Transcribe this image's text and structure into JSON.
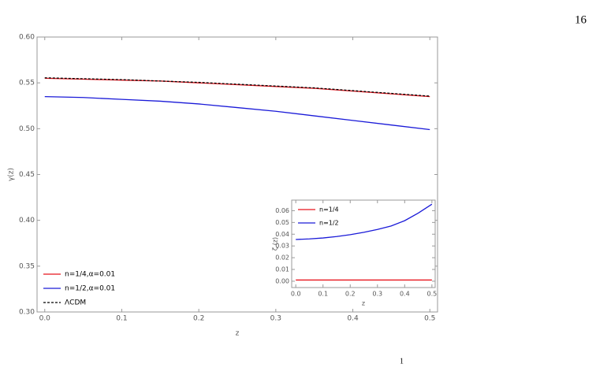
{
  "page_number": "16",
  "footer_fragment": "1",
  "chart_data": [
    {
      "type": "line",
      "xlabel": "z",
      "ylabel": "γ(z)",
      "xlim": [
        -0.01,
        0.51
      ],
      "ylim": [
        0.3,
        0.6
      ],
      "xticks": [
        {
          "value": 0,
          "label": "0.0"
        },
        0.1,
        0.2,
        0.3,
        0.4,
        0.5
      ],
      "yticks": [
        {
          "value": 0.3,
          "label": "0.30"
        },
        0.35,
        {
          "value": 0.4,
          "label": "0.40"
        },
        0.45,
        {
          "value": 0.5,
          "label": "0.50"
        },
        0.55,
        {
          "value": 0.6,
          "label": "0.60"
        }
      ],
      "legend": "lower left",
      "x": [
        0,
        0.05,
        0.1,
        0.15,
        0.2,
        0.25,
        0.3,
        0.35,
        0.4,
        0.45,
        0.5
      ],
      "series": [
        {
          "name": "n=1/4,α=0.01",
          "color": "#e8141c",
          "values": [
            0.555,
            0.554,
            0.553,
            0.552,
            0.55,
            0.548,
            0.546,
            0.544,
            0.541,
            0.538,
            0.535
          ]
        },
        {
          "name": "n=1/2,α=0.01",
          "color": "#1a1ad8",
          "values": [
            0.535,
            0.534,
            0.532,
            0.53,
            0.527,
            0.523,
            0.519,
            0.514,
            0.509,
            0.504,
            0.499
          ]
        },
        {
          "name": "ΛCDM",
          "color": "#000000",
          "dashed": true,
          "values": [
            0.5555,
            0.5545,
            0.5535,
            0.552,
            0.5505,
            0.5485,
            0.5465,
            0.5445,
            0.5415,
            0.5385,
            0.5355
          ]
        }
      ]
    },
    {
      "type": "line",
      "xlabel": "z",
      "ylabel": "ζ (z)",
      "xlim": [
        -0.015,
        0.512
      ],
      "ylim": [
        -0.0054,
        0.069
      ],
      "xticks": [
        {
          "value": 0,
          "label": "0.0"
        },
        0.1,
        0.2,
        0.3,
        0.4,
        0.5
      ],
      "yticks": [
        {
          "value": 0,
          "label": "0.00"
        },
        0.01,
        0.02,
        0.03,
        0.04,
        0.05,
        0.06
      ],
      "legend": "upper left",
      "x": [
        0,
        0.05,
        0.1,
        0.15,
        0.2,
        0.25,
        0.3,
        0.35,
        0.4,
        0.45,
        0.5
      ],
      "series": [
        {
          "name": "n=1/4",
          "color": "#e8141c",
          "values": [
            0.001,
            0.001,
            0.001,
            0.001,
            0.001,
            0.001,
            0.001,
            0.001,
            0.001,
            0.001,
            0.001
          ]
        },
        {
          "name": "n=1/2",
          "color": "#1a1ad8",
          "values": [
            0.0355,
            0.036,
            0.0368,
            0.038,
            0.0396,
            0.0416,
            0.044,
            0.047,
            0.0515,
            0.058,
            0.0655
          ]
        }
      ]
    }
  ]
}
